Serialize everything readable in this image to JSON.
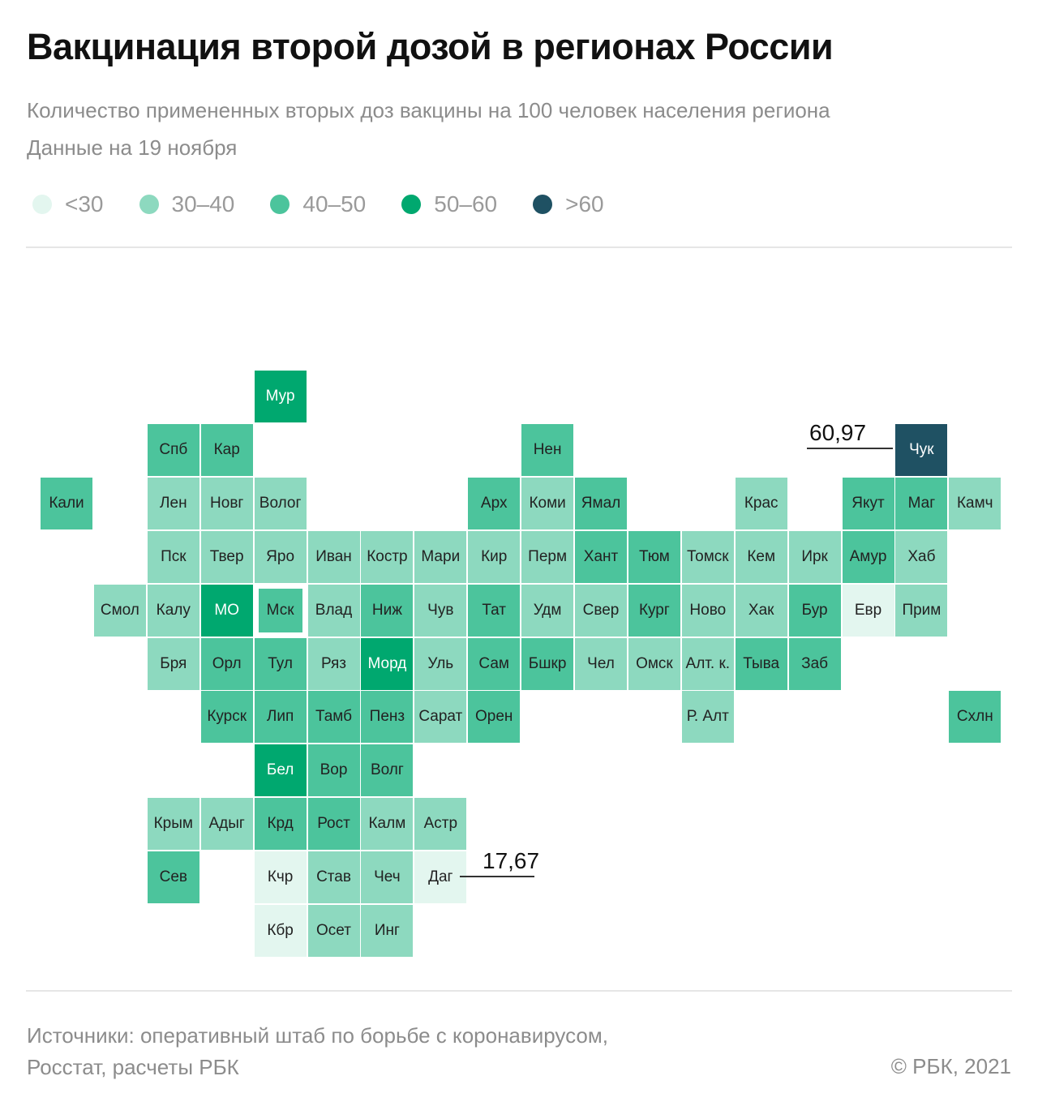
{
  "header": {
    "title": "Вакцинация второй дозой в регионах России",
    "subtitle": "Количество примененных вторых доз вакцины на 100 человек населения региона",
    "date_note": "Данные на 19 ноября"
  },
  "footer": {
    "sources_line1": "Источники: оперативный штаб по борьбе с коронавирусом,",
    "sources_line2": "Росстат, расчеты РБК",
    "copyright": "©  РБК, 2021"
  },
  "chart_data": {
    "type": "heatmap",
    "title": "Вакцинация второй дозой в регионах России",
    "legend": [
      {
        "label": "<30",
        "color": "#e3f6ef"
      },
      {
        "label": "30–40",
        "color": "#8dd9bf"
      },
      {
        "label": "40–50",
        "color": "#4cc49c"
      },
      {
        "label": "50–60",
        "color": "#00a86f"
      },
      {
        "label": ">60",
        "color": "#1f5163"
      }
    ],
    "annotations": [
      {
        "region": "Чук",
        "value": "60,97"
      },
      {
        "region": "Даг",
        "value": "17,67"
      }
    ],
    "regions": [
      {
        "name": "Мур",
        "cat": 3
      },
      {
        "name": "Спб",
        "cat": 2
      },
      {
        "name": "Кар",
        "cat": 2
      },
      {
        "name": "Нен",
        "cat": 2
      },
      {
        "name": "Чук",
        "cat": 4
      },
      {
        "name": "Кали",
        "cat": 2
      },
      {
        "name": "Лен",
        "cat": 1
      },
      {
        "name": "Новг",
        "cat": 1
      },
      {
        "name": "Волог",
        "cat": 1
      },
      {
        "name": "Арх",
        "cat": 2
      },
      {
        "name": "Коми",
        "cat": 1
      },
      {
        "name": "Ямал",
        "cat": 2
      },
      {
        "name": "Крас",
        "cat": 1
      },
      {
        "name": "Якут",
        "cat": 2
      },
      {
        "name": "Маг",
        "cat": 2
      },
      {
        "name": "Камч",
        "cat": 1
      },
      {
        "name": "Пск",
        "cat": 1
      },
      {
        "name": "Твер",
        "cat": 1
      },
      {
        "name": "Яро",
        "cat": 1
      },
      {
        "name": "Иван",
        "cat": 1
      },
      {
        "name": "Костр",
        "cat": 1
      },
      {
        "name": "Мари",
        "cat": 1
      },
      {
        "name": "Кир",
        "cat": 1
      },
      {
        "name": "Перм",
        "cat": 1
      },
      {
        "name": "Хант",
        "cat": 2
      },
      {
        "name": "Тюм",
        "cat": 2
      },
      {
        "name": "Томск",
        "cat": 1
      },
      {
        "name": "Кем",
        "cat": 1
      },
      {
        "name": "Ирк",
        "cat": 1
      },
      {
        "name": "Амур",
        "cat": 2
      },
      {
        "name": "Хаб",
        "cat": 1
      },
      {
        "name": "Смол",
        "cat": 1
      },
      {
        "name": "Калу",
        "cat": 1
      },
      {
        "name": "МО",
        "cat": 3
      },
      {
        "name": "Мск",
        "cat": 2
      },
      {
        "name": "Влад",
        "cat": 1
      },
      {
        "name": "Ниж",
        "cat": 2
      },
      {
        "name": "Чув",
        "cat": 1
      },
      {
        "name": "Тат",
        "cat": 2
      },
      {
        "name": "Удм",
        "cat": 1
      },
      {
        "name": "Свер",
        "cat": 1
      },
      {
        "name": "Кург",
        "cat": 2
      },
      {
        "name": "Ново",
        "cat": 1
      },
      {
        "name": "Хак",
        "cat": 1
      },
      {
        "name": "Бур",
        "cat": 2
      },
      {
        "name": "Евр",
        "cat": 0
      },
      {
        "name": "Прим",
        "cat": 1
      },
      {
        "name": "Бря",
        "cat": 1
      },
      {
        "name": "Орл",
        "cat": 2
      },
      {
        "name": "Тул",
        "cat": 2
      },
      {
        "name": "Ряз",
        "cat": 1
      },
      {
        "name": "Морд",
        "cat": 3
      },
      {
        "name": "Уль",
        "cat": 1
      },
      {
        "name": "Сам",
        "cat": 2
      },
      {
        "name": "Бшкр",
        "cat": 2
      },
      {
        "name": "Чел",
        "cat": 1
      },
      {
        "name": "Омск",
        "cat": 1
      },
      {
        "name": "Алт. к.",
        "cat": 1
      },
      {
        "name": "Тыва",
        "cat": 2
      },
      {
        "name": "Заб",
        "cat": 2
      },
      {
        "name": "Курск",
        "cat": 2
      },
      {
        "name": "Лип",
        "cat": 2
      },
      {
        "name": "Тамб",
        "cat": 2
      },
      {
        "name": "Пенз",
        "cat": 2
      },
      {
        "name": "Сарат",
        "cat": 1
      },
      {
        "name": "Орен",
        "cat": 2
      },
      {
        "name": "Р. Алт",
        "cat": 1
      },
      {
        "name": "Схлн",
        "cat": 2
      },
      {
        "name": "Бел",
        "cat": 3
      },
      {
        "name": "Вор",
        "cat": 2
      },
      {
        "name": "Волг",
        "cat": 2
      },
      {
        "name": "Крым",
        "cat": 1
      },
      {
        "name": "Адыг",
        "cat": 1
      },
      {
        "name": "Крд",
        "cat": 2
      },
      {
        "name": "Рост",
        "cat": 2
      },
      {
        "name": "Калм",
        "cat": 1
      },
      {
        "name": "Астр",
        "cat": 1
      },
      {
        "name": "Сев",
        "cat": 2
      },
      {
        "name": "Кчр",
        "cat": 0
      },
      {
        "name": "Став",
        "cat": 1
      },
      {
        "name": "Чеч",
        "cat": 1
      },
      {
        "name": "Даг",
        "cat": 0
      },
      {
        "name": "Кбр",
        "cat": 0
      },
      {
        "name": "Осет",
        "cat": 1
      },
      {
        "name": "Инг",
        "cat": 1
      }
    ]
  }
}
